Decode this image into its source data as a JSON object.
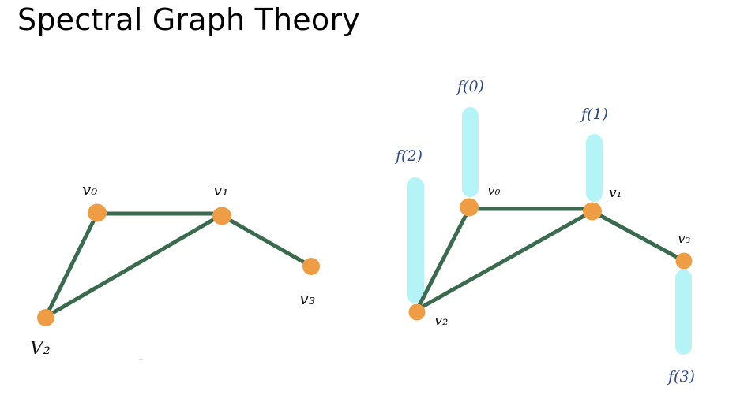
{
  "title": "Spectral Graph Theory",
  "colors": {
    "edge": "#3a6b4e",
    "node": "#ee9d45",
    "bar": "#b4f3f6",
    "function_label": "#2e4a8a",
    "title": "#000000"
  },
  "left_graph": {
    "labels": {
      "v0": "v₀",
      "v1": "v₁",
      "v2": "V₂",
      "v3": "v₃"
    },
    "edges": [
      "v0-v1",
      "v0-v2",
      "v1-v2",
      "v1-v3"
    ]
  },
  "right_graph": {
    "labels": {
      "v0": "v₀",
      "v1": "v₁",
      "v2": "v₂",
      "v3": "v₃"
    },
    "edges": [
      "v0-v1",
      "v0-v2",
      "v1-v2",
      "v1-v3"
    ],
    "function_values": {
      "f0": "f(0)",
      "f1": "f(1)",
      "f2": "f(2)",
      "f3": "f(3)"
    }
  }
}
